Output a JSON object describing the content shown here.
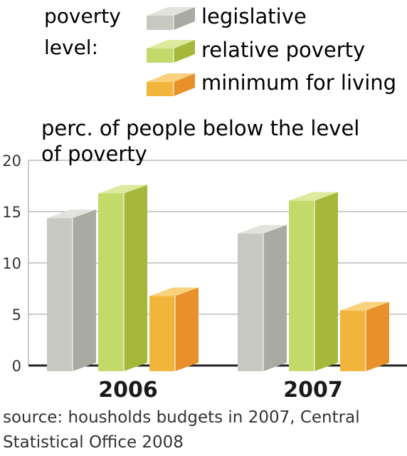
{
  "legend_title": [
    "poverty",
    "level:"
  ],
  "chart_data": {
    "type": "bar",
    "title": "perc. of people below the level of poverty",
    "title_lines": [
      "perc. of people below the level",
      "of poverty"
    ],
    "categories": [
      "2006",
      "2007"
    ],
    "series": [
      {
        "name": "legislative",
        "values": [
          15.2,
          13.7
        ],
        "colors": {
          "front": "#c7c8bf",
          "side": "#a9aaa1",
          "top": "#e2e3dc"
        }
      },
      {
        "name": "relative poverty",
        "values": [
          17.6,
          16.9
        ],
        "colors": {
          "front": "#c3d96a",
          "side": "#a6b83b",
          "top": "#dcea9e"
        }
      },
      {
        "name": "minimum for living",
        "values": [
          7.6,
          6.2
        ],
        "colors": {
          "front": "#f2b53c",
          "side": "#e8912a",
          "top": "#f8d27e"
        }
      }
    ],
    "ylim": [
      0,
      20
    ],
    "yticks": [
      0,
      5,
      10,
      15,
      20
    ],
    "grid": true,
    "legend_position": "top"
  },
  "source_lines": [
    "source: housholds budgets in 2007, Central",
    "Statistical Office 2008"
  ]
}
